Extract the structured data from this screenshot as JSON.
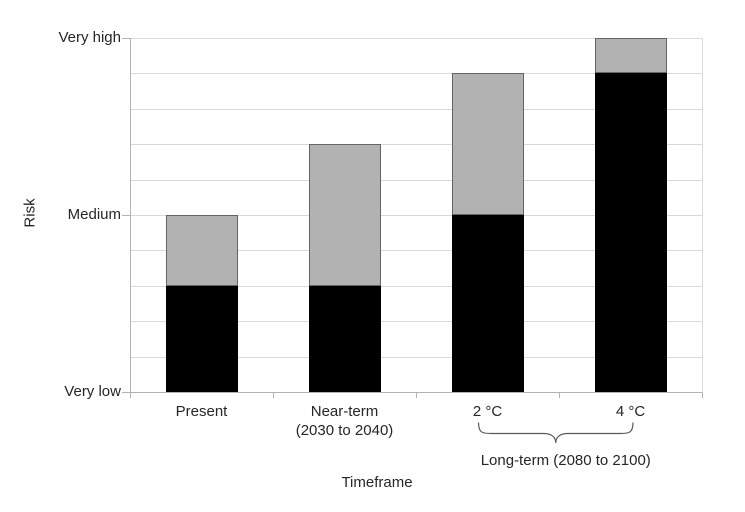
{
  "chart_data": {
    "type": "bar",
    "stacked": true,
    "title": "",
    "xlabel": "Timeframe",
    "ylabel": "Risk",
    "ylim": [
      0,
      10
    ],
    "gridline_step": 1,
    "grid": "horizontal",
    "legend_position": "none",
    "categories": [
      "Present",
      "Near-term\n(2030 to 2040)",
      "2 °C",
      "4 °C"
    ],
    "series": [
      {
        "name": "black-segment",
        "color": "#000000",
        "border_color": "#000000",
        "values": [
          3,
          3,
          5,
          9
        ]
      },
      {
        "name": "gray-segment",
        "color": "#b2b2b2",
        "border_color": "#646464",
        "values": [
          2,
          4,
          4,
          1
        ]
      }
    ],
    "totals": [
      5,
      7,
      9,
      10
    ],
    "y_tick_labels": [
      {
        "label": "Very low",
        "value": 0
      },
      {
        "label": "Medium",
        "value": 5
      },
      {
        "label": "Very high",
        "value": 10
      }
    ],
    "annotation": {
      "label": "Long-term (2080 to 2100)",
      "from_category": "2 °C",
      "to_category": "4 °C"
    }
  },
  "colors": {
    "background": "#ffffff",
    "gridline": "#d9d9d9",
    "axis": "#b3b3b3",
    "text": "#262626",
    "brace": "#595959"
  }
}
